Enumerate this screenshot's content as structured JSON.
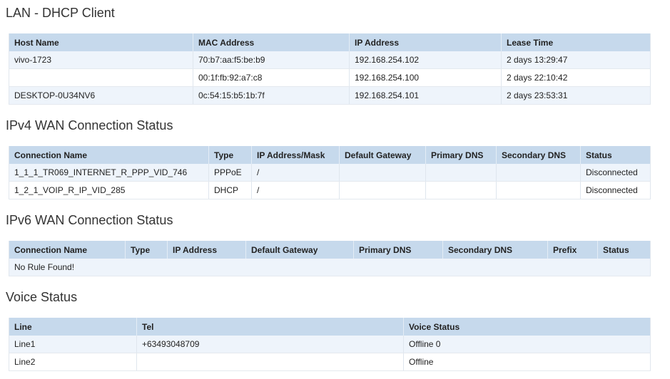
{
  "sections": [
    {
      "title": "LAN - DHCP Client",
      "key": "lan-dhcp",
      "columns": [
        "Host Name",
        "MAC Address",
        "IP Address",
        "Lease Time"
      ],
      "rows": [
        [
          "vivo-1723",
          "70:b7:aa:f5:be:b9",
          "192.168.254.102",
          "2 days 13:29:47"
        ],
        [
          "",
          "00:1f:fb:92:a7:c8",
          "192.168.254.100",
          "2 days 22:10:42"
        ],
        [
          "DESKTOP-0U34NV6",
          "0c:54:15:b5:1b:7f",
          "192.168.254.101",
          "2 days 23:53:31"
        ]
      ]
    },
    {
      "title": "IPv4 WAN Connection Status",
      "key": "ipv4-wan",
      "columns": [
        "Connection Name",
        "Type",
        "IP Address/Mask",
        "Default Gateway",
        "Primary DNS",
        "Secondary DNS",
        "Status"
      ],
      "rows": [
        [
          "1_1_1_TR069_INTERNET_R_PPP_VID_746",
          "PPPoE",
          "/",
          "",
          "",
          "",
          "Disconnected"
        ],
        [
          "1_2_1_VOIP_R_IP_VID_285",
          "DHCP",
          "/",
          "",
          "",
          "",
          "Disconnected"
        ]
      ]
    },
    {
      "title": "IPv6 WAN Connection Status",
      "key": "ipv6-wan",
      "columns": [
        "Connection Name",
        "Type",
        "IP Address",
        "Default Gateway",
        "Primary DNS",
        "Secondary DNS",
        "Prefix",
        "Status"
      ],
      "empty_message": "No Rule Found!",
      "rows": []
    },
    {
      "title": "Voice Status",
      "key": "voice",
      "columns": [
        "Line",
        "Tel",
        "Voice Status"
      ],
      "rows": [
        [
          "Line1",
          "+63493048709",
          "Offline 0"
        ],
        [
          "Line2",
          "",
          "Offline"
        ]
      ]
    }
  ],
  "colors": {
    "header_bg": "#c6d9ec",
    "odd_row_bg": "#eef4fb"
  }
}
